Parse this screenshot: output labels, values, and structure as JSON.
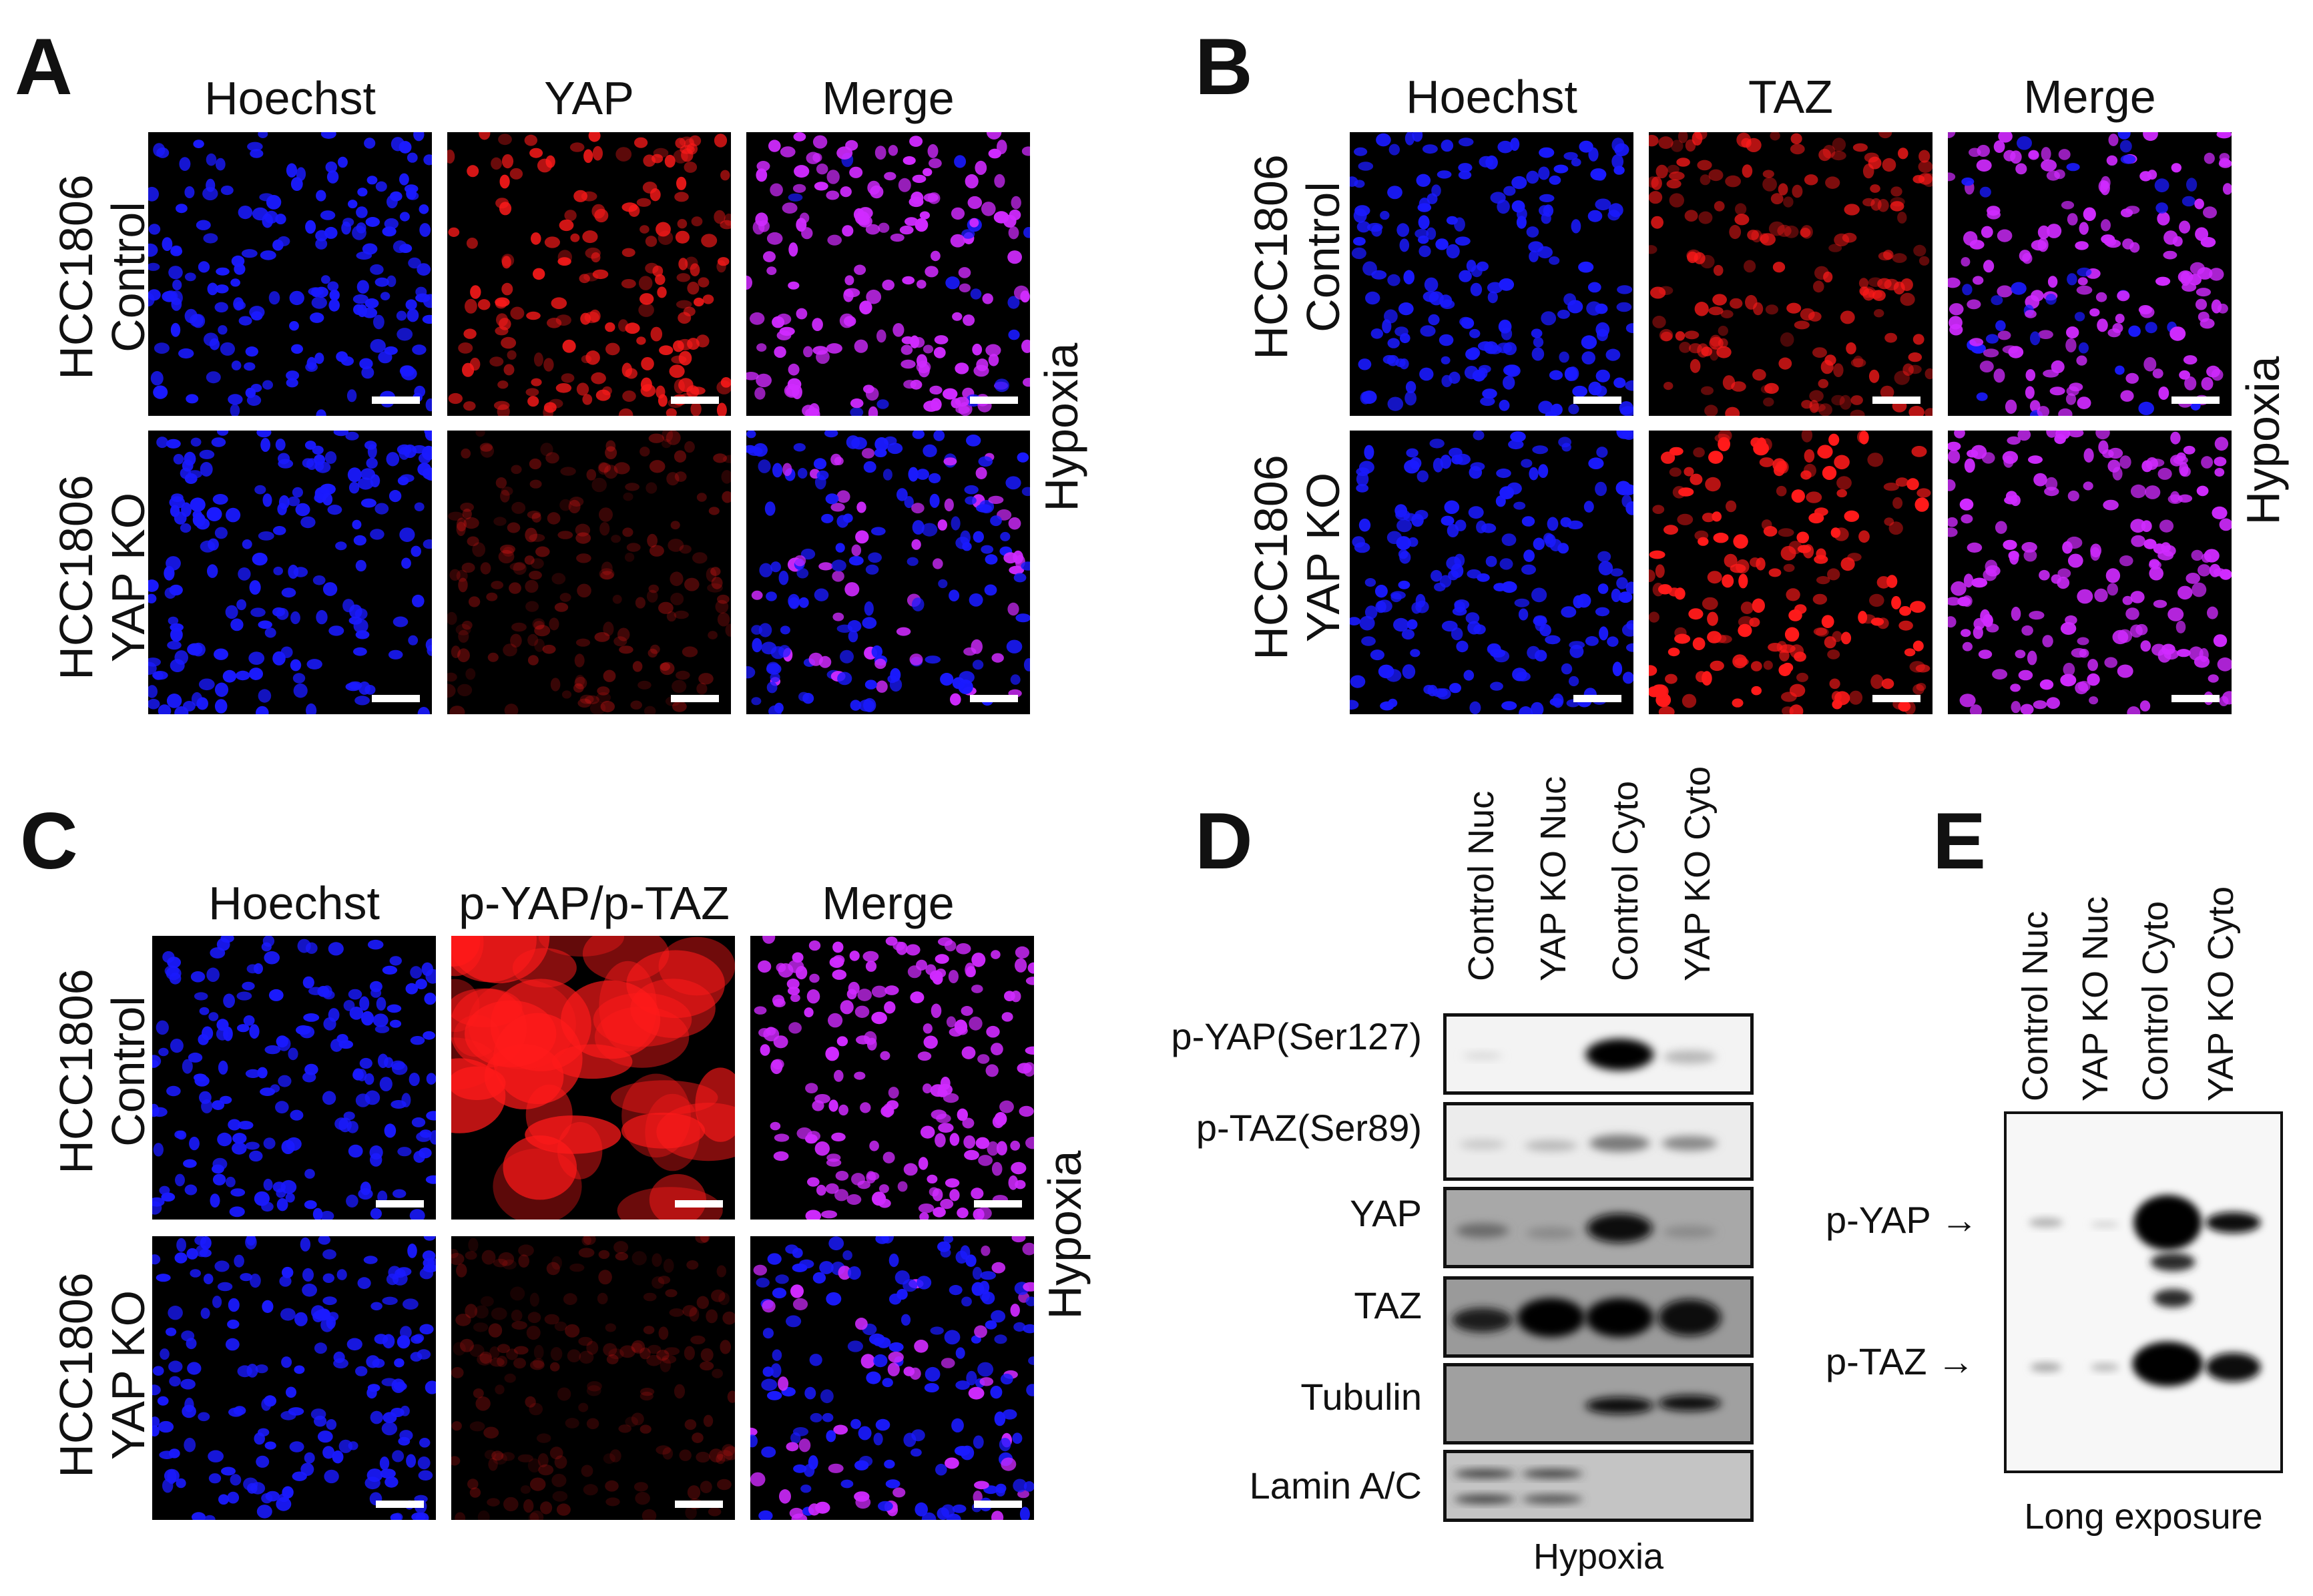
{
  "panels": {
    "A": {
      "label": "A",
      "columns": [
        "Hoechst",
        "YAP",
        "Merge"
      ],
      "rows": [
        [
          "HCC1806",
          "Control"
        ],
        [
          "HCC1806",
          "YAP KO"
        ]
      ],
      "side_label": "Hypoxia"
    },
    "B": {
      "label": "B",
      "columns": [
        "Hoechst",
        "TAZ",
        "Merge"
      ],
      "rows": [
        [
          "HCC1806",
          "Control"
        ],
        [
          "HCC1806",
          "YAP KO"
        ]
      ],
      "side_label": "Hypoxia"
    },
    "C": {
      "label": "C",
      "columns": [
        "Hoechst",
        "p-YAP/p-TAZ",
        "Merge"
      ],
      "rows": [
        [
          "HCC1806",
          "Control"
        ],
        [
          "HCC1806",
          "YAP KO"
        ]
      ],
      "side_label": "Hypoxia"
    },
    "D": {
      "label": "D",
      "lanes": [
        "Control Nuc",
        "YAP KO Nuc",
        "Control Cyto",
        "YAP KO Cyto"
      ],
      "blots": [
        "p-YAP(Ser127)",
        "p-TAZ(Ser89)",
        "YAP",
        "TAZ",
        "Tubulin",
        "Lamin A/C"
      ],
      "caption": "Hypoxia"
    },
    "E": {
      "label": "E",
      "lanes": [
        "Control Nuc",
        "YAP KO Nuc",
        "Control Cyto",
        "YAP KO Cyto"
      ],
      "markers": [
        "p-YAP",
        "p-TAZ"
      ],
      "caption": "Long exposure"
    }
  },
  "colors": {
    "nuclei_blue": "#1a1aff",
    "signal_red": "#ff1a1a",
    "merge_magenta": "#d02aff",
    "blot_background": "#9a9a9a"
  }
}
